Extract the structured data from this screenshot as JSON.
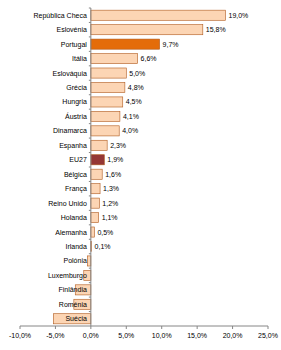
{
  "chart_data": {
    "type": "bar",
    "orientation": "horizontal",
    "categories": [
      "República Checa",
      "Eslovénia",
      "Portugal",
      "Itália",
      "Eslováquia",
      "Grécia",
      "Hungria",
      "Áustria",
      "Dinamarca",
      "Espanha",
      "EU27",
      "Bélgica",
      "França",
      "Reino Unido",
      "Holanda",
      "Alemanha",
      "Irlanda",
      "Polónia",
      "Luxemburgo",
      "Finlândia",
      "Roménia",
      "Suécia"
    ],
    "values": [
      19.0,
      15.8,
      9.7,
      6.6,
      5.0,
      4.8,
      4.5,
      4.1,
      4.0,
      2.3,
      1.9,
      1.6,
      1.3,
      1.2,
      1.1,
      0.5,
      0.1,
      -0.5,
      -1.0,
      -2.2,
      -2.4,
      -5.3
    ],
    "value_labels": [
      "19,0%",
      "15,8%",
      "9,7%",
      "6,6%",
      "5,0%",
      "4,8%",
      "4,5%",
      "4,1%",
      "4,0%",
      "2,3%",
      "1,9%",
      "1,6%",
      "1,3%",
      "1,2%",
      "1,1%",
      "0,5%",
      "0,1%",
      null,
      null,
      null,
      null,
      null
    ],
    "data_labels": true,
    "colors": [
      "#fcd5b4",
      "#fcd5b4",
      "#e46c0a",
      "#fcd5b4",
      "#fcd5b4",
      "#fcd5b4",
      "#fcd5b4",
      "#fcd5b4",
      "#fcd5b4",
      "#fcd5b4",
      "#953735",
      "#fcd5b4",
      "#fcd5b4",
      "#fcd5b4",
      "#fcd5b4",
      "#fcd5b4",
      "#fcd5b4",
      "#fcd5b4",
      "#fcd5b4",
      "#fcd5b4",
      "#fcd5b4",
      "#fcd5b4"
    ],
    "xlim": [
      -10,
      25
    ],
    "xticks": [
      {
        "value": -10,
        "label": "-10,0%"
      },
      {
        "value": -5,
        "label": "-5,0%"
      },
      {
        "value": 0,
        "label": "0,0%"
      },
      {
        "value": 5,
        "label": "5,0%"
      },
      {
        "value": 10,
        "label": "10,0%"
      },
      {
        "value": 15,
        "label": "15,0%"
      },
      {
        "value": 20,
        "label": "20,0%"
      },
      {
        "value": 25,
        "label": "25,0%"
      }
    ],
    "grid": false
  }
}
